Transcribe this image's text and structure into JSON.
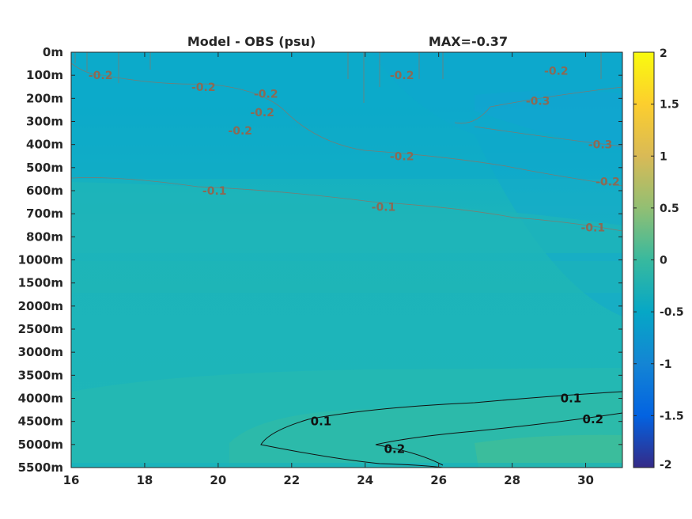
{
  "chart_data": {
    "type": "heatmap",
    "title_left": "Model - OBS (psu)",
    "title_right": "MAX=-0.37",
    "x_ticks": [
      "16",
      "18",
      "20",
      "22",
      "24",
      "26",
      "28",
      "30"
    ],
    "xlim": [
      16,
      31
    ],
    "y_ticks": [
      "0m",
      "100m",
      "200m",
      "300m",
      "400m",
      "500m",
      "600m",
      "700m",
      "800m",
      "1000m",
      "1500m",
      "2000m",
      "2500m",
      "3000m",
      "3500m",
      "4000m",
      "4500m",
      "5000m",
      "5500m"
    ],
    "colorbar": {
      "ticks": [
        "2",
        "1.5",
        "1",
        "0.5",
        "0",
        "-0.5",
        "-1",
        "-1.5",
        "-2"
      ],
      "range": [
        -2,
        2
      ],
      "colormap": "parula"
    },
    "contour_labels_negative": [
      {
        "text": "-0.2",
        "x": 16.8,
        "depth_level": 1.0
      },
      {
        "text": "-0.2",
        "x": 19.6,
        "depth_level": 1.5
      },
      {
        "text": "-0.2",
        "x": 21.3,
        "depth_level": 1.8
      },
      {
        "text": "-0.2",
        "x": 21.2,
        "depth_level": 2.6
      },
      {
        "text": "-0.2",
        "x": 20.6,
        "depth_level": 3.4
      },
      {
        "text": "-0.2",
        "x": 25.0,
        "depth_level": 1.0
      },
      {
        "text": "-0.2",
        "x": 29.2,
        "depth_level": 0.8
      },
      {
        "text": "-0.3",
        "x": 28.7,
        "depth_level": 2.1
      },
      {
        "text": "-0.3",
        "x": 30.4,
        "depth_level": 4.0
      },
      {
        "text": "-0.2",
        "x": 25.0,
        "depth_level": 4.5
      },
      {
        "text": "-0.2",
        "x": 30.6,
        "depth_level": 5.6
      },
      {
        "text": "-0.1",
        "x": 19.9,
        "depth_level": 6.0
      },
      {
        "text": "-0.1",
        "x": 24.5,
        "depth_level": 6.7
      },
      {
        "text": "-0.1",
        "x": 30.2,
        "depth_level": 7.6
      }
    ],
    "contour_labels_positive": [
      {
        "text": "0.1",
        "x": 29.6,
        "depth_level": 15.0
      },
      {
        "text": "0.1",
        "x": 22.8,
        "depth_level": 16.0
      },
      {
        "text": "0.2",
        "x": 30.2,
        "depth_level": 15.9
      },
      {
        "text": "0.2",
        "x": 24.8,
        "depth_level": 17.2
      }
    ]
  }
}
